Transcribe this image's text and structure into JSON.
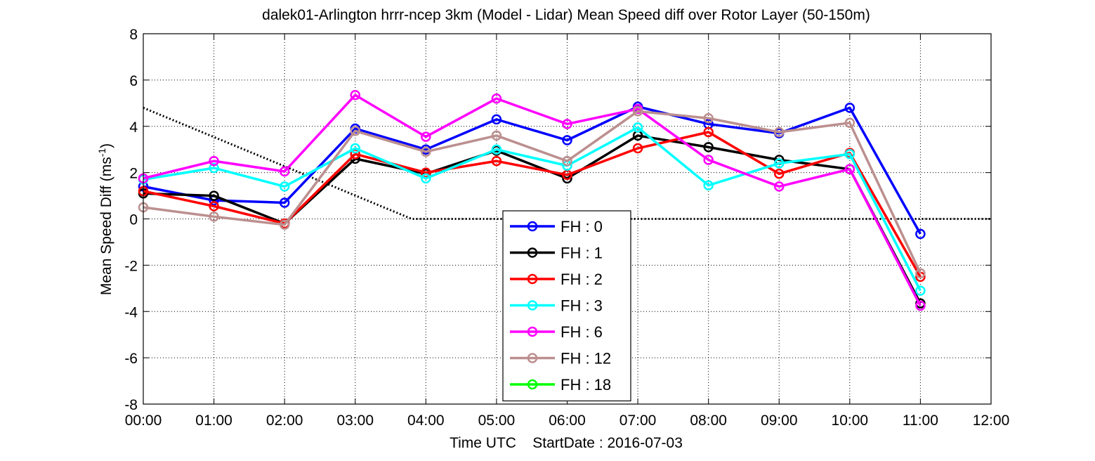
{
  "chart_data": {
    "type": "line",
    "title": "dalek01-Arlington hrrr-ncep 3km (Model - Lidar) Mean Speed diff over Rotor Layer (50-150m)",
    "xlabel": "Time UTC    StartDate : 2016-07-03",
    "ylabel_main": "Mean Speed Diff (ms",
    "ylabel_sup": "-1",
    "ylabel_end": ")",
    "x_ticks": [
      "00:00",
      "01:00",
      "02:00",
      "03:00",
      "04:00",
      "05:00",
      "06:00",
      "07:00",
      "08:00",
      "09:00",
      "10:00",
      "11:00",
      "12:00"
    ],
    "y_ticks": [
      "8",
      "6",
      "4",
      "2",
      "0",
      "-2",
      "-4",
      "-6",
      "-8"
    ],
    "xlim": [
      0,
      12
    ],
    "ylim": [
      -8,
      8
    ],
    "grid": "dotted",
    "legend_position": "bottom-center",
    "reference_line": {
      "x": [
        0,
        3.8,
        12
      ],
      "y": [
        4.8,
        0,
        0
      ],
      "style": "dotted",
      "color": "#000000"
    },
    "series": [
      {
        "name": "FH : 0",
        "color": "#0000ff",
        "x": [
          0,
          1,
          2,
          3,
          4,
          5,
          6,
          7,
          8,
          9,
          10,
          11
        ],
        "values": [
          1.4,
          0.8,
          0.7,
          3.9,
          3.0,
          4.3,
          3.4,
          4.85,
          4.1,
          3.7,
          4.8,
          -0.65
        ]
      },
      {
        "name": "FH : 1",
        "color": "#000000",
        "x": [
          0,
          1,
          2,
          3,
          4,
          5,
          6,
          7,
          8,
          9,
          10,
          11
        ],
        "values": [
          1.1,
          1.0,
          -0.2,
          2.6,
          1.95,
          2.95,
          1.75,
          3.6,
          3.1,
          2.55,
          2.15,
          -3.65
        ]
      },
      {
        "name": "FH : 2",
        "color": "#ff0000",
        "x": [
          0,
          1,
          2,
          3,
          4,
          5,
          6,
          7,
          8,
          9,
          10,
          11
        ],
        "values": [
          1.2,
          0.55,
          -0.2,
          2.8,
          2.0,
          2.5,
          1.9,
          3.05,
          3.75,
          1.95,
          2.85,
          -2.5
        ]
      },
      {
        "name": "FH : 3",
        "color": "#00ffff",
        "x": [
          0,
          1,
          2,
          3,
          4,
          5,
          6,
          7,
          8,
          9,
          10,
          11
        ],
        "values": [
          1.7,
          2.2,
          1.4,
          3.05,
          1.75,
          3.0,
          2.3,
          3.95,
          1.45,
          2.4,
          2.8,
          -3.1
        ]
      },
      {
        "name": "FH : 6",
        "color": "#ff00ff",
        "x": [
          0,
          1,
          2,
          3,
          4,
          5,
          6,
          7,
          8,
          9,
          10,
          11
        ],
        "values": [
          1.75,
          2.5,
          2.05,
          5.35,
          3.55,
          5.2,
          4.1,
          4.75,
          2.55,
          1.4,
          2.15,
          -3.75
        ]
      },
      {
        "name": "FH : 12",
        "color": "#bc8f8f",
        "x": [
          0,
          1,
          2,
          3,
          4,
          5,
          6,
          7,
          8,
          9,
          10,
          11
        ],
        "values": [
          0.5,
          0.1,
          -0.25,
          3.8,
          2.9,
          3.6,
          2.5,
          4.65,
          4.35,
          3.75,
          4.15,
          -2.35
        ]
      },
      {
        "name": "FH : 18",
        "color": "#00ff00",
        "x": [],
        "values": []
      }
    ]
  }
}
